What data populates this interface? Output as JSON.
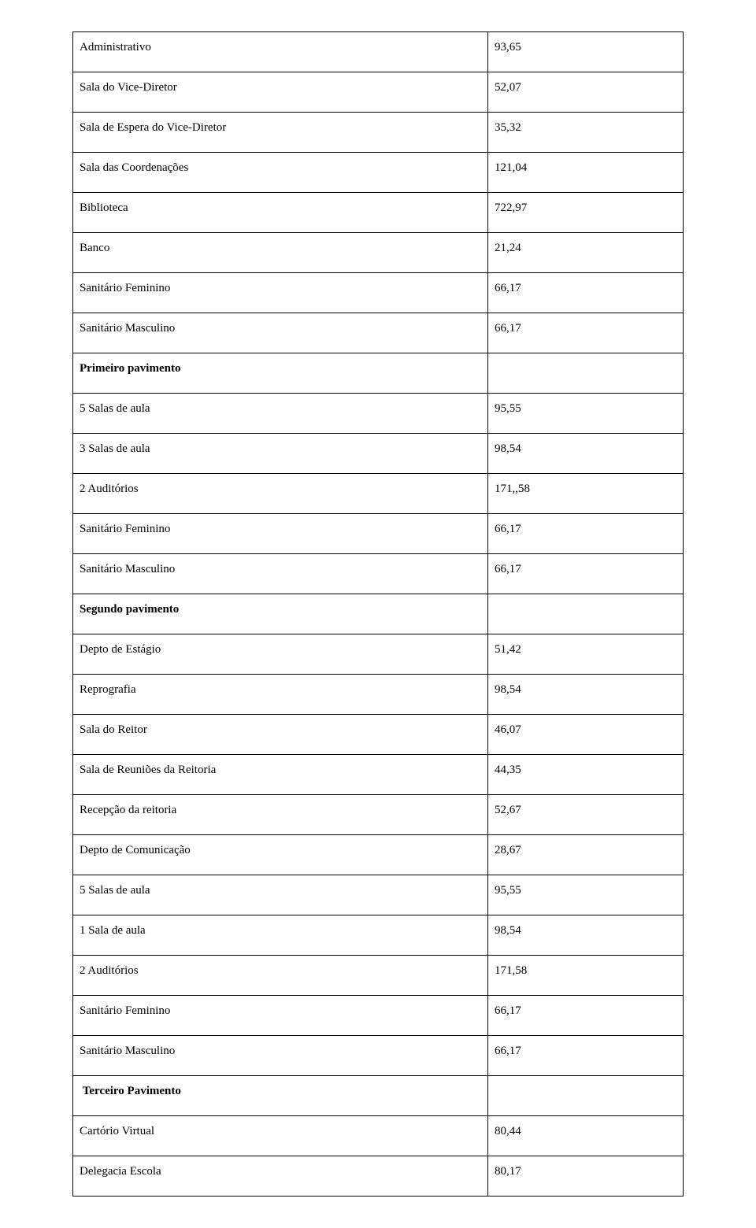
{
  "table": {
    "columns": [
      "label",
      "value"
    ],
    "col_widths_pct": [
      68,
      32
    ],
    "border_color": "#000000",
    "font_family": "Times New Roman",
    "font_size_pt": 12,
    "text_color": "#000000",
    "background_color": "#ffffff",
    "rows": [
      {
        "label": "Administrativo",
        "value": "93,65",
        "bold": false
      },
      {
        "label": "Sala do Vice-Diretor",
        "value": "52,07",
        "bold": false
      },
      {
        "label": "Sala de Espera do Vice-Diretor",
        "value": "35,32",
        "bold": false
      },
      {
        "label": "Sala das Coordenações",
        "value": "121,04",
        "bold": false
      },
      {
        "label": "Biblioteca",
        "value": "722,97",
        "bold": false
      },
      {
        "label": "Banco",
        "value": "21,24",
        "bold": false
      },
      {
        "label": "Sanitário Feminino",
        "value": "66,17",
        "bold": false
      },
      {
        "label": "Sanitário Masculino",
        "value": "66,17",
        "bold": false
      },
      {
        "label": "Primeiro pavimento",
        "value": "",
        "bold": true
      },
      {
        "label": "5 Salas de aula",
        "value": "95,55",
        "bold": false
      },
      {
        "label": "3 Salas de aula",
        "value": "98,54",
        "bold": false
      },
      {
        "label": "2 Auditórios",
        "value": "171,,58",
        "bold": false
      },
      {
        "label": "Sanitário Feminino",
        "value": "66,17",
        "bold": false
      },
      {
        "label": "Sanitário Masculino",
        "value": "66,17",
        "bold": false
      },
      {
        "label": "Segundo pavimento",
        "value": "",
        "bold": true
      },
      {
        "label": "Depto de Estágio",
        "value": "51,42",
        "bold": false
      },
      {
        "label": "Reprografia",
        "value": "98,54",
        "bold": false
      },
      {
        "label": "Sala do Reitor",
        "value": "46,07",
        "bold": false
      },
      {
        "label": "Sala de Reuniões da Reitoria",
        "value": "44,35",
        "bold": false
      },
      {
        "label": "Recepção da reitoria",
        "value": "52,67",
        "bold": false
      },
      {
        "label": "Depto de Comunicação",
        "value": "28,67",
        "bold": false
      },
      {
        "label": "5 Salas de aula",
        "value": "95,55",
        "bold": false
      },
      {
        "label": "1 Sala de aula",
        "value": "98,54",
        "bold": false
      },
      {
        "label": "2 Auditórios",
        "value": "171,58",
        "bold": false
      },
      {
        "label": "Sanitário Feminino",
        "value": "66,17",
        "bold": false
      },
      {
        "label": "Sanitário Masculino",
        "value": "66,17",
        "bold": false
      },
      {
        "label": " Terceiro Pavimento",
        "value": "",
        "bold": true
      },
      {
        "label": "Cartório Virtual",
        "value": "80,44",
        "bold": false
      },
      {
        "label": "Delegacia Escola",
        "value": "80,17",
        "bold": false
      }
    ]
  }
}
